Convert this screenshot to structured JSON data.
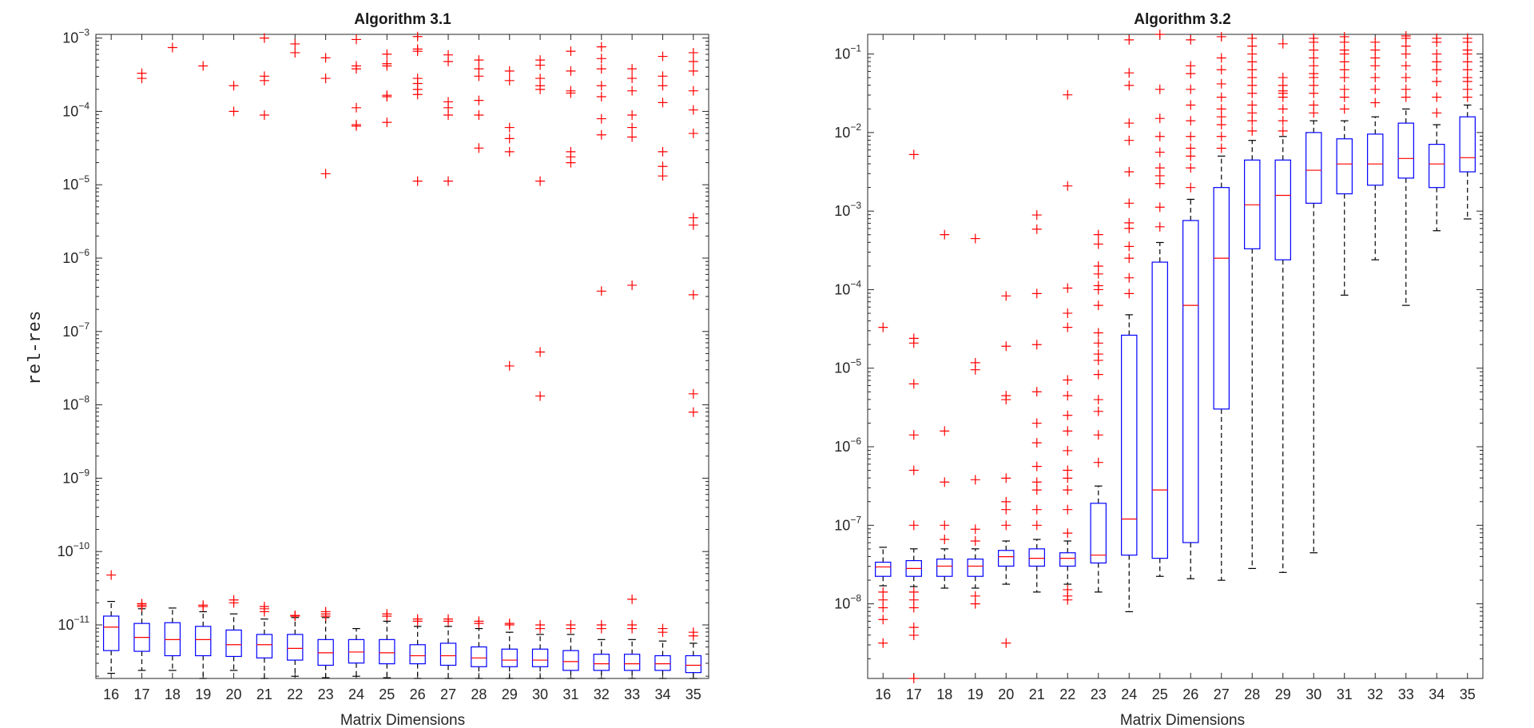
{
  "chart_data": [
    {
      "type": "boxplot",
      "title": "Algorithm 3.1",
      "xlabel": "Matrix Dimensions",
      "ylabel": "rel-res",
      "yscale": "log",
      "ylim_log10": [
        -11.73,
        -2.95
      ],
      "categories": [
        "16",
        "17",
        "18",
        "19",
        "20",
        "21",
        "22",
        "23",
        "24",
        "25",
        "26",
        "27",
        "28",
        "29",
        "30",
        "31",
        "32",
        "33",
        "34",
        "35"
      ],
      "yticks_log10": [
        -11,
        -10,
        -9,
        -8,
        -7,
        -6,
        -5,
        -4,
        -3
      ],
      "colors": {
        "box": "#0000ff",
        "median": "#ff0000",
        "whisker": "#000000",
        "outlier": "#ff0000"
      },
      "boxes": [
        {
          "q1": -11.35,
          "med": -11.03,
          "q3": -10.88,
          "lo": -11.66,
          "hi": -10.68,
          "out": [
            -10.32
          ]
        },
        {
          "q1": -11.36,
          "med": -11.17,
          "q3": -10.98,
          "lo": -11.62,
          "hi": -10.78,
          "out": [
            -10.75,
            -10.73,
            -10.71,
            -3.48,
            -3.55
          ]
        },
        {
          "q1": -11.42,
          "med": -11.2,
          "q3": -10.97,
          "lo": -11.62,
          "hi": -10.77,
          "out": [
            -3.13
          ]
        },
        {
          "q1": -11.42,
          "med": -11.2,
          "q3": -11.02,
          "lo": -11.75,
          "hi": -10.82,
          "out": [
            -10.75,
            -10.73,
            -3.38
          ]
        },
        {
          "q1": -11.43,
          "med": -11.27,
          "q3": -11.07,
          "lo": -11.62,
          "hi": -10.85,
          "out": [
            -10.7,
            -10.66,
            -3.65,
            -4.0
          ]
        },
        {
          "q1": -11.45,
          "med": -11.27,
          "q3": -11.13,
          "lo": -11.75,
          "hi": -10.92,
          "out": [
            -10.82,
            -10.78,
            -10.75,
            -3.0,
            -3.52,
            -3.58,
            -4.05
          ]
        },
        {
          "q1": -11.48,
          "med": -11.32,
          "q3": -11.13,
          "lo": -11.7,
          "hi": -10.9,
          "out": [
            -10.88,
            -10.87,
            -2.78,
            -3.08,
            -3.2
          ]
        },
        {
          "q1": -11.55,
          "med": -11.38,
          "q3": -11.2,
          "lo": -11.72,
          "hi": -10.9,
          "out": [
            -10.88,
            -10.85,
            -10.82,
            -3.27,
            -3.55,
            -4.85
          ]
        },
        {
          "q1": -11.52,
          "med": -11.37,
          "q3": -11.2,
          "lo": -11.7,
          "hi": -11.05,
          "out": [
            -3.02,
            -3.38,
            -3.42,
            -3.95,
            -4.18,
            -4.2
          ]
        },
        {
          "q1": -11.53,
          "med": -11.38,
          "q3": -11.2,
          "lo": -11.72,
          "hi": -10.95,
          "out": [
            -10.88,
            -10.85,
            -3.22,
            -3.35,
            -3.38,
            -3.78,
            -3.8,
            -4.15
          ]
        },
        {
          "q1": -11.53,
          "med": -11.42,
          "q3": -11.27,
          "lo": -11.73,
          "hi": -11.02,
          "out": [
            -10.95,
            -10.92,
            -2.98,
            -3.15,
            -3.18,
            -3.55,
            -3.62,
            -3.7,
            -3.77,
            -4.95
          ]
        },
        {
          "q1": -11.55,
          "med": -11.42,
          "q3": -11.25,
          "lo": -11.73,
          "hi": -11.02,
          "out": [
            -10.95,
            -10.92,
            -3.23,
            -3.32,
            -3.87,
            -3.95,
            -4.05,
            -4.95
          ]
        },
        {
          "q1": -11.57,
          "med": -11.45,
          "q3": -11.3,
          "lo": -11.73,
          "hi": -11.05,
          "out": [
            -10.98,
            -10.95,
            -3.3,
            -3.42,
            -3.52,
            -3.85,
            -4.05,
            -4.5
          ]
        },
        {
          "q1": -11.57,
          "med": -11.48,
          "q3": -11.33,
          "lo": -11.75,
          "hi": -11.1,
          "out": [
            -11.0,
            -10.98,
            -3.45,
            -3.58,
            -4.22,
            -4.37,
            -4.55,
            -7.47
          ]
        },
        {
          "q1": -11.57,
          "med": -11.48,
          "q3": -11.33,
          "lo": -11.75,
          "hi": -11.13,
          "out": [
            -11.05,
            -11.0,
            -3.3,
            -3.37,
            -3.55,
            -3.65,
            -3.7,
            -4.95,
            -7.28,
            -7.88
          ]
        },
        {
          "q1": -11.62,
          "med": -11.5,
          "q3": -11.35,
          "lo": -11.75,
          "hi": -11.13,
          "out": [
            -11.05,
            -11.0,
            -3.18,
            -3.45,
            -3.72,
            -3.75,
            -4.55,
            -4.62,
            -4.7
          ]
        },
        {
          "q1": -11.62,
          "med": -11.53,
          "q3": -11.4,
          "lo": -11.75,
          "hi": -11.2,
          "out": [
            -11.05,
            -11.0,
            -3.12,
            -3.28,
            -3.42,
            -3.65,
            -3.8,
            -4.1,
            -4.32,
            -6.45
          ]
        },
        {
          "q1": -11.62,
          "med": -11.53,
          "q3": -11.4,
          "lo": -11.75,
          "hi": -11.2,
          "out": [
            -11.05,
            -11.0,
            -10.65,
            -3.42,
            -3.55,
            -3.72,
            -4.05,
            -4.22,
            -4.35,
            -6.37
          ]
        },
        {
          "q1": -11.62,
          "med": -11.53,
          "q3": -11.42,
          "lo": -11.75,
          "hi": -11.22,
          "out": [
            -11.1,
            -11.05,
            -3.25,
            -3.52,
            -3.65,
            -3.88,
            -4.55,
            -4.75,
            -4.88
          ]
        },
        {
          "q1": -11.65,
          "med": -11.55,
          "q3": -11.42,
          "lo": -11.75,
          "hi": -11.25,
          "out": [
            -11.15,
            -11.1,
            -3.2,
            -3.32,
            -3.45,
            -3.72,
            -3.98,
            -4.3,
            -5.45,
            -5.55,
            -6.5,
            -7.85,
            -8.1
          ]
        }
      ]
    },
    {
      "type": "boxplot",
      "title": "Algorithm 3.2",
      "xlabel": "Matrix Dimensions",
      "ylabel": "",
      "yscale": "log",
      "ylim_log10": [
        -8.95,
        -0.75
      ],
      "categories": [
        "16",
        "17",
        "18",
        "19",
        "20",
        "21",
        "22",
        "23",
        "24",
        "25",
        "26",
        "27",
        "28",
        "29",
        "30",
        "31",
        "32",
        "33",
        "34",
        "35"
      ],
      "yticks_log10": [
        -8,
        -7,
        -6,
        -5,
        -4,
        -3,
        -2,
        -1
      ],
      "colors": {
        "box": "#0000ff",
        "median": "#ff0000",
        "whisker": "#000000",
        "outlier": "#ff0000"
      },
      "boxes": [
        {
          "q1": -7.65,
          "med": -7.53,
          "q3": -7.47,
          "lo": -7.77,
          "hi": -7.28,
          "out": [
            -7.85,
            -7.95,
            -8.05,
            -8.2,
            -8.5,
            -4.48
          ]
        },
        {
          "q1": -7.65,
          "med": -7.55,
          "q3": -7.45,
          "lo": -7.78,
          "hi": -7.3,
          "out": [
            -7.85,
            -7.95,
            -8.05,
            -8.3,
            -8.4,
            -7.0,
            -6.3,
            -5.85,
            -5.2,
            -4.62,
            -4.68,
            -2.28,
            -8.95
          ]
        },
        {
          "q1": -7.65,
          "med": -7.52,
          "q3": -7.43,
          "lo": -7.8,
          "hi": -7.3,
          "out": [
            -7.18,
            -7.0,
            -6.45,
            -5.8,
            -3.3
          ]
        },
        {
          "q1": -7.65,
          "med": -7.52,
          "q3": -7.43,
          "lo": -7.8,
          "hi": -7.3,
          "out": [
            -7.9,
            -8.0,
            -7.2,
            -7.05,
            -6.42,
            -4.93,
            -5.02,
            -3.35
          ]
        },
        {
          "q1": -7.52,
          "med": -7.4,
          "q3": -7.32,
          "lo": -7.75,
          "hi": -7.2,
          "out": [
            -8.5,
            -7.0,
            -6.8,
            -6.7,
            -6.4,
            -5.4,
            -5.35,
            -4.72,
            -4.08
          ]
        },
        {
          "q1": -7.52,
          "med": -7.42,
          "q3": -7.3,
          "lo": -7.85,
          "hi": -7.18,
          "out": [
            -7.0,
            -6.8,
            -6.55,
            -6.45,
            -6.25,
            -5.95,
            -5.7,
            -5.3,
            -4.7,
            -4.05,
            -3.23,
            -3.05
          ]
        },
        {
          "q1": -7.52,
          "med": -7.42,
          "q3": -7.35,
          "lo": -7.75,
          "hi": -7.2,
          "out": [
            -7.82,
            -7.9,
            -7.95,
            -7.1,
            -6.8,
            -6.55,
            -6.4,
            -6.3,
            -6.05,
            -5.8,
            -5.6,
            -5.35,
            -5.15,
            -4.48,
            -4.3,
            -3.98,
            -2.68,
            -1.52
          ]
        },
        {
          "q1": -7.48,
          "med": -7.38,
          "q3": -6.72,
          "lo": -7.85,
          "hi": -6.5,
          "out": [
            -6.2,
            -5.85,
            -5.55,
            -5.4,
            -5.08,
            -4.9,
            -4.82,
            -4.68,
            -4.55,
            -4.2,
            -4.0,
            -3.95,
            -3.8,
            -3.7,
            -3.42,
            -3.3
          ]
        },
        {
          "q1": -7.38,
          "med": -6.92,
          "q3": -4.58,
          "lo": -8.1,
          "hi": -4.32,
          "out": [
            -4.05,
            -3.85,
            -3.6,
            -3.45,
            -3.22,
            -3.15,
            -2.9,
            -2.5,
            -2.1,
            -1.88,
            -1.4,
            -1.24,
            -0.82
          ]
        },
        {
          "q1": -7.42,
          "med": -6.55,
          "q3": -3.65,
          "lo": -7.65,
          "hi": -3.4,
          "out": [
            -3.2,
            -2.95,
            -2.65,
            -2.55,
            -2.45,
            -2.25,
            -2.05,
            -1.82,
            -1.45,
            -0.75
          ]
        },
        {
          "q1": -7.22,
          "med": -4.2,
          "q3": -3.12,
          "lo": -7.68,
          "hi": -2.85,
          "out": [
            -2.7,
            -2.45,
            -2.3,
            -2.2,
            -2.05,
            -1.85,
            -1.65,
            -1.45,
            -1.25,
            -1.15,
            -0.82
          ]
        },
        {
          "q1": -5.52,
          "med": -3.6,
          "q3": -2.7,
          "lo": -7.7,
          "hi": -2.3,
          "out": [
            -2.2,
            -2.05,
            -1.9,
            -1.8,
            -1.7,
            -1.55,
            -1.38,
            -1.2,
            -1.05,
            -0.78
          ]
        },
        {
          "q1": -3.48,
          "med": -2.92,
          "q3": -2.35,
          "lo": -7.55,
          "hi": -2.1,
          "out": [
            -1.98,
            -1.85,
            -1.75,
            -1.65,
            -1.5,
            -1.4,
            -1.3,
            -1.2,
            -1.1,
            -1.0,
            -0.9,
            -0.8
          ]
        },
        {
          "q1": -3.62,
          "med": -2.8,
          "q3": -2.35,
          "lo": -7.6,
          "hi": -2.05,
          "out": [
            -1.98,
            -1.85,
            -1.7,
            -1.55,
            -1.5,
            -1.47,
            -1.4,
            -1.3,
            -0.87
          ]
        },
        {
          "q1": -2.9,
          "med": -2.48,
          "q3": -2.0,
          "lo": -7.35,
          "hi": -1.85,
          "out": [
            -1.75,
            -1.65,
            -1.5,
            -1.4,
            -1.3,
            -1.25,
            -1.15,
            -1.05,
            -0.95,
            -0.85,
            -0.8
          ]
        },
        {
          "q1": -2.78,
          "med": -2.4,
          "q3": -2.08,
          "lo": -4.07,
          "hi": -1.85,
          "out": [
            -1.7,
            -1.55,
            -1.45,
            -1.3,
            -1.2,
            -1.1,
            -1.0,
            -0.95,
            -0.85,
            -0.78
          ]
        },
        {
          "q1": -2.67,
          "med": -2.4,
          "q3": -2.02,
          "lo": -3.62,
          "hi": -1.8,
          "out": [
            -1.62,
            -1.45,
            -1.3,
            -1.15,
            -1.05,
            -0.95,
            -0.85
          ]
        },
        {
          "q1": -2.58,
          "med": -2.33,
          "q3": -1.88,
          "lo": -4.2,
          "hi": -1.7,
          "out": [
            -1.55,
            -1.45,
            -1.3,
            -1.15,
            -1.0,
            -0.9,
            -0.8,
            -0.77
          ]
        },
        {
          "q1": -2.7,
          "med": -2.4,
          "q3": -2.15,
          "lo": -3.25,
          "hi": -1.9,
          "out": [
            -1.75,
            -1.55,
            -1.35,
            -1.2,
            -1.1,
            -1.0,
            -0.85,
            -0.8
          ]
        },
        {
          "q1": -2.5,
          "med": -2.32,
          "q3": -1.8,
          "lo": -3.1,
          "hi": -1.65,
          "out": [
            -1.55,
            -1.45,
            -1.35,
            -1.3,
            -1.2,
            -1.1,
            -1.0,
            -0.95,
            -0.85,
            -0.8
          ]
        }
      ]
    }
  ]
}
